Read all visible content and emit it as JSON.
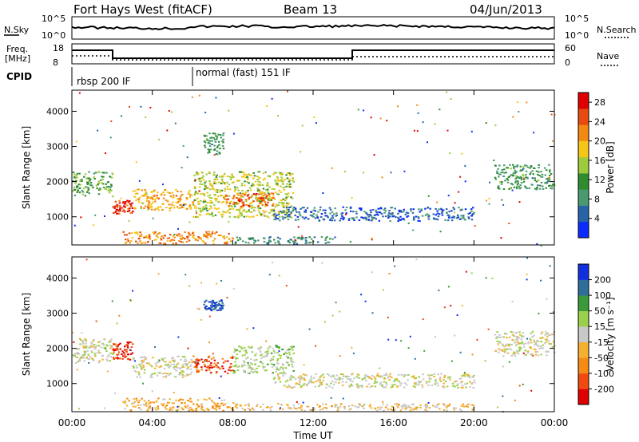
{
  "header": {
    "radar": "Fort Hays West (fitACF)",
    "beam": "Beam 13",
    "date": "04/Jun/2013"
  },
  "noise_panel": {
    "left_label": "N.Sky",
    "left_ticks": [
      "10^5",
      "10^0"
    ],
    "right_label": "N.Search",
    "right_ticks": [
      "10^5",
      "10^0"
    ]
  },
  "freq_panel": {
    "left_label_1": "Freq.",
    "left_label_2": "[MHz]",
    "left_ticks": [
      "18",
      "8"
    ],
    "right_label": "Nave",
    "right_ticks": [
      "60",
      "0"
    ],
    "cpid_label": "CPID",
    "cpid_segments": [
      "rbsp 200 IF",
      "normal (fast) 151 IF"
    ]
  },
  "chart_data": [
    {
      "type": "heatmap",
      "name": "power-panel",
      "ylabel": "Slant Range [km]",
      "ylim": [
        200,
        4600
      ],
      "yticks": [
        "1000",
        "2000",
        "3000",
        "4000"
      ],
      "xlim": [
        "00:00",
        "24:00"
      ],
      "colorbar": {
        "label": "Power [dB]",
        "ticks": [
          "4",
          "8",
          "12",
          "16",
          "20",
          "24",
          "28"
        ],
        "range": [
          0,
          30
        ],
        "colors": [
          "#0a2cff",
          "#2862a8",
          "#4a9a70",
          "#2e8b2e",
          "#9ecb3a",
          "#f5c518",
          "#f28a12",
          "#e84b10",
          "#e00000"
        ]
      },
      "regions": [
        {
          "t": [
            0.0,
            2.0
          ],
          "range": [
            1600,
            2300
          ],
          "level": 12
        },
        {
          "t": [
            2.0,
            3.0
          ],
          "range": [
            1100,
            1500
          ],
          "level": 26
        },
        {
          "t": [
            3.0,
            6.0
          ],
          "range": [
            1200,
            1800
          ],
          "level": 20
        },
        {
          "t": [
            6.0,
            11.0
          ],
          "range": [
            1000,
            2300
          ],
          "level": 16
        },
        {
          "t": [
            7.5,
            10.0
          ],
          "range": [
            1300,
            1700
          ],
          "level": 24
        },
        {
          "t": [
            2.5,
            8.0
          ],
          "range": [
            250,
            600
          ],
          "level": 22
        },
        {
          "t": [
            8.0,
            13.0
          ],
          "range": [
            250,
            450
          ],
          "level": 8
        },
        {
          "t": [
            10.0,
            20.0
          ],
          "range": [
            900,
            1300
          ],
          "level": 5
        },
        {
          "t": [
            21.0,
            24.0
          ],
          "range": [
            1800,
            2500
          ],
          "level": 10
        },
        {
          "t": [
            6.5,
            7.5
          ],
          "range": [
            2800,
            3400
          ],
          "level": 10
        }
      ]
    },
    {
      "type": "heatmap",
      "name": "velocity-panel",
      "ylabel": "Slant Range [km]",
      "ylim": [
        200,
        4600
      ],
      "yticks": [
        "1000",
        "2000",
        "3000",
        "4000"
      ],
      "xlim": [
        "00:00",
        "24:00"
      ],
      "xticks": [
        "00:00",
        "04:00",
        "08:00",
        "12:00",
        "16:00",
        "20:00",
        "00:00"
      ],
      "xlabel": "Time UT",
      "colorbar": {
        "label": "Velocity [m s⁻¹]",
        "ticks": [
          "200",
          "100",
          "50",
          "15",
          "-15",
          "-50",
          "-100",
          "-200"
        ],
        "range": [
          -250,
          250
        ],
        "colors": [
          "#e00000",
          "#f04a10",
          "#f58a14",
          "#f5b030",
          "#c8c8c8",
          "#9ad04a",
          "#3a9a3a",
          "#2f6e9a",
          "#1030e0"
        ]
      },
      "regions": [
        {
          "t": [
            0.0,
            2.0
          ],
          "range": [
            1600,
            2300
          ],
          "level": 0
        },
        {
          "t": [
            2.0,
            3.0
          ],
          "range": [
            1700,
            2200
          ],
          "level": -180
        },
        {
          "t": [
            3.0,
            6.0
          ],
          "range": [
            1200,
            1800
          ],
          "level": 0
        },
        {
          "t": [
            6.0,
            8.0
          ],
          "range": [
            1300,
            1800
          ],
          "level": -160
        },
        {
          "t": [
            8.0,
            11.0
          ],
          "range": [
            1300,
            2100
          ],
          "level": 40
        },
        {
          "t": [
            6.5,
            7.5
          ],
          "range": [
            3100,
            3400
          ],
          "level": 200
        },
        {
          "t": [
            2.5,
            8.0
          ],
          "range": [
            250,
            600
          ],
          "level": -70
        },
        {
          "t": [
            8.0,
            20.0
          ],
          "range": [
            250,
            450
          ],
          "level": -40
        },
        {
          "t": [
            10.0,
            20.0
          ],
          "range": [
            900,
            1300
          ],
          "level": 0
        },
        {
          "t": [
            21.0,
            24.0
          ],
          "range": [
            1800,
            2500
          ],
          "level": 0
        }
      ]
    }
  ]
}
